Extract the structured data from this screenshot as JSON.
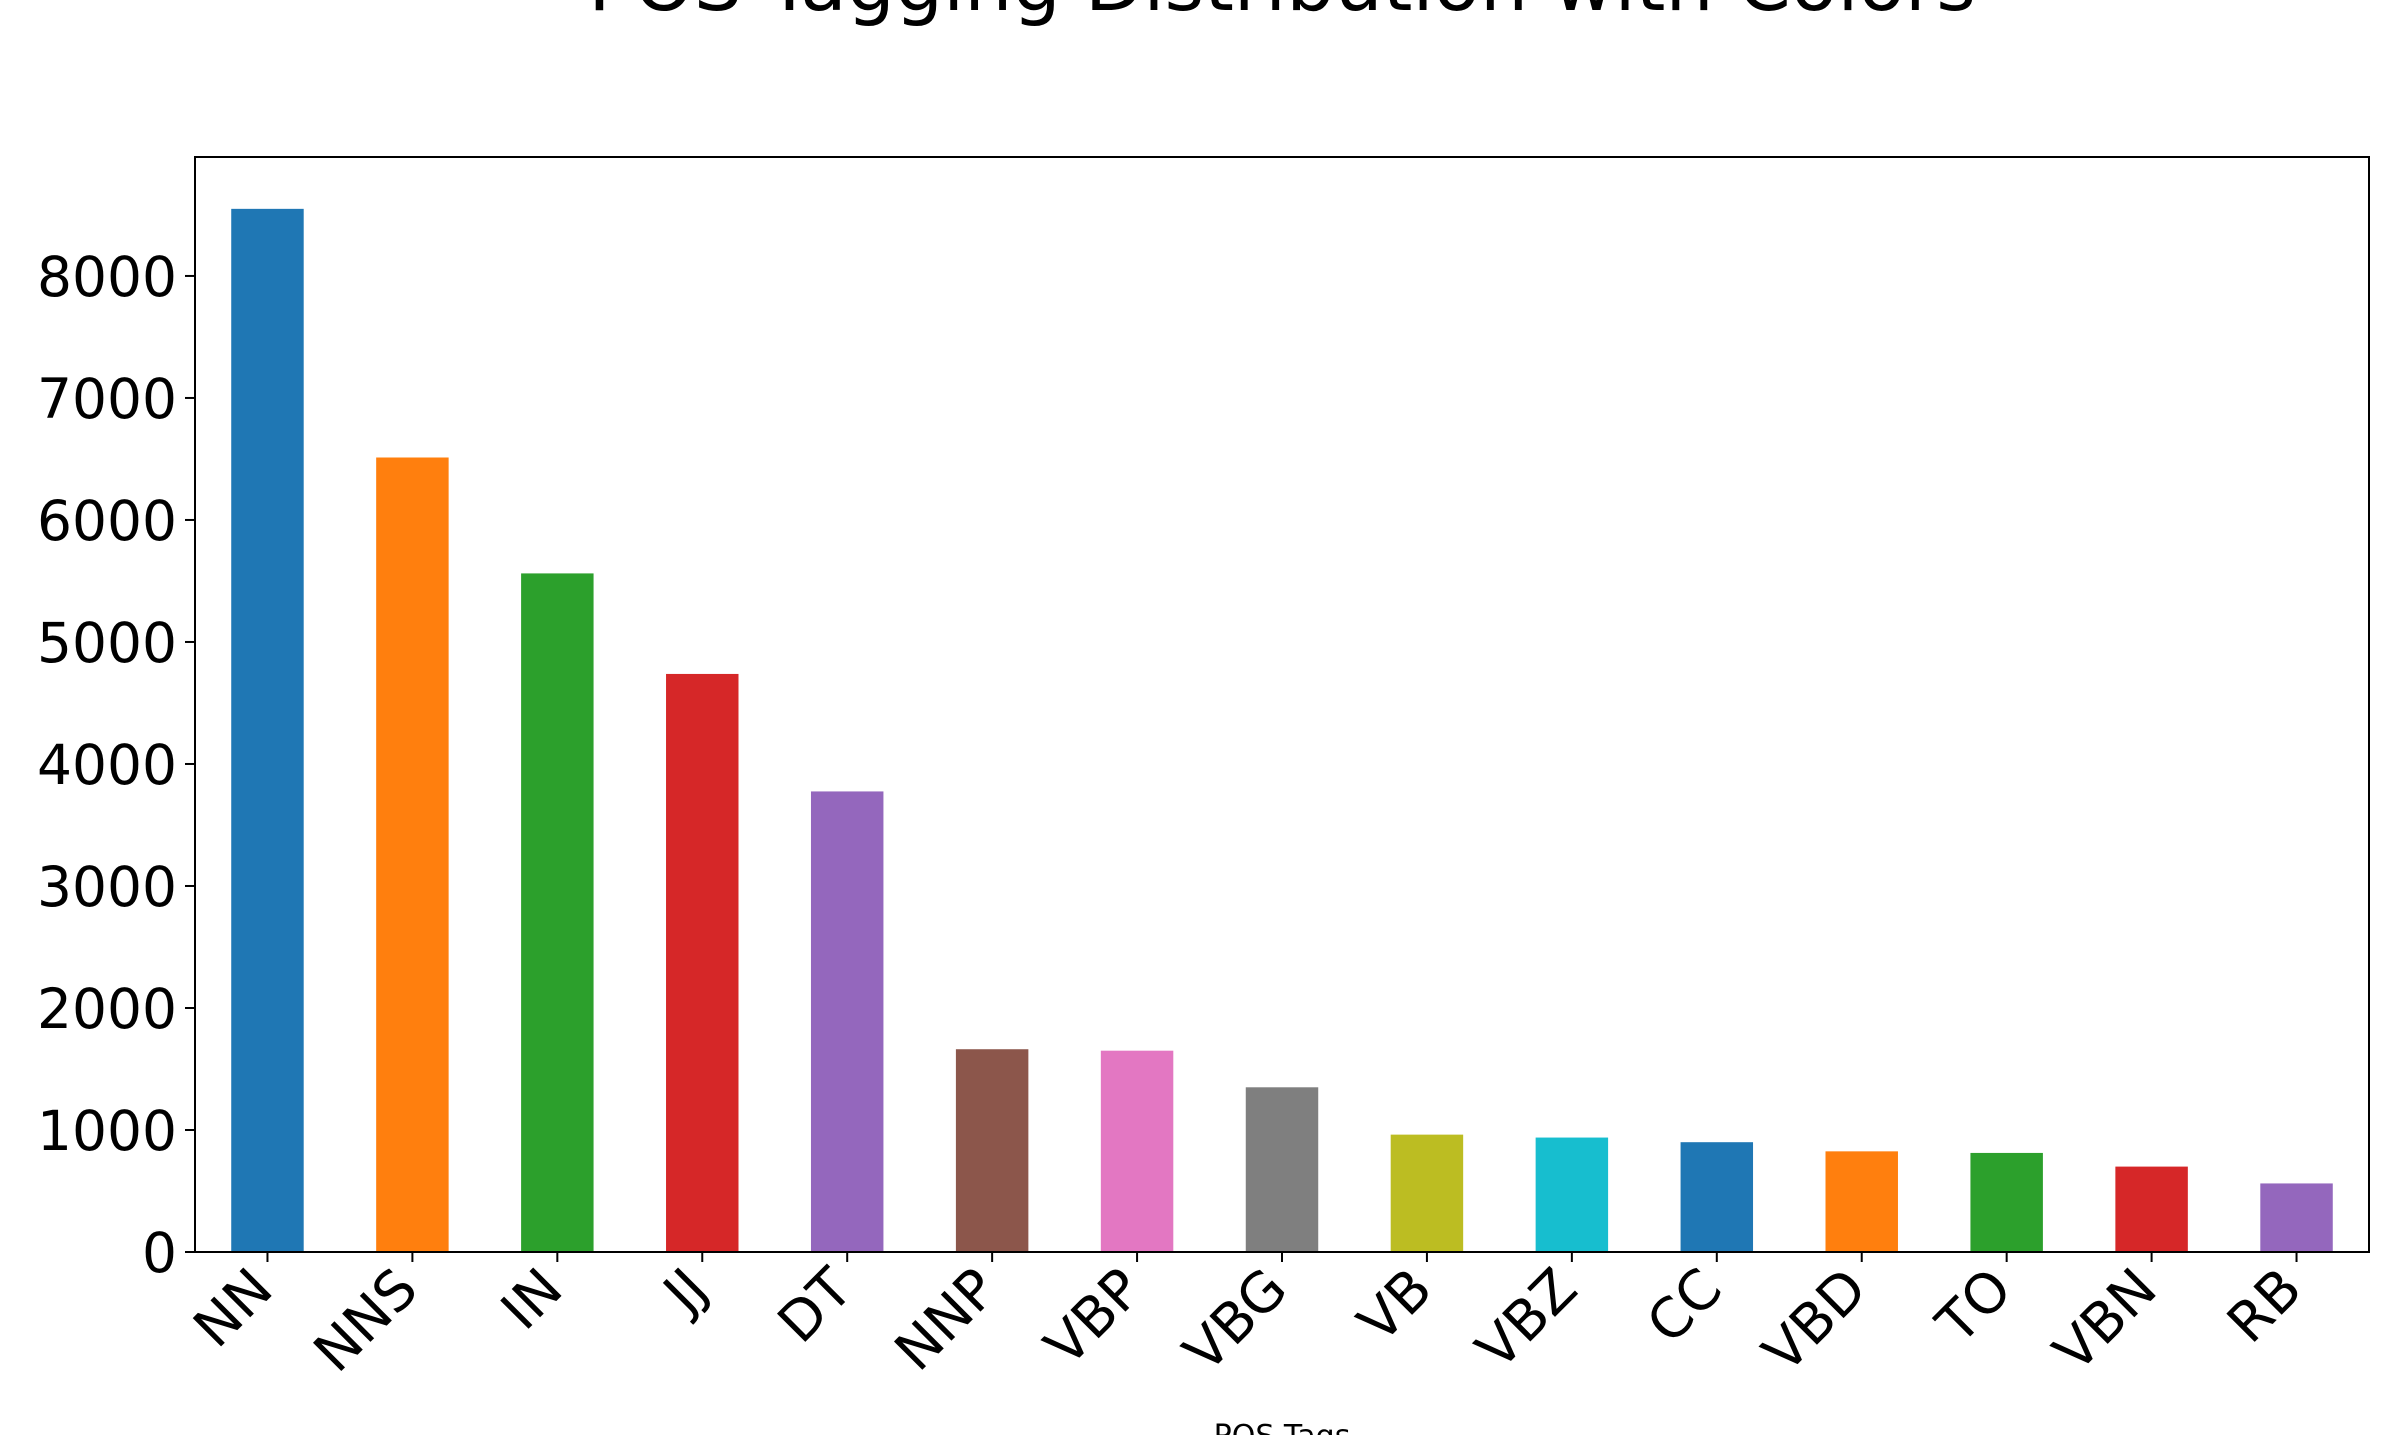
{
  "chart_data": {
    "type": "bar",
    "title": "POS Tagging Distribution with Colors",
    "x_label": "POS Tags",
    "categories": [
      "NN",
      "NNS",
      "IN",
      "JJ",
      "DT",
      "NNP",
      "VBP",
      "VBG",
      "VB",
      "VBZ",
      "CC",
      "VBD",
      "TO",
      "VBN",
      "RB"
    ],
    "values": [
      8550,
      6512,
      5562,
      4738,
      3775,
      1662,
      1650,
      1350,
      962,
      938,
      900,
      825,
      812,
      700,
      562
    ],
    "colors": [
      "#1f77b4",
      "#ff7f0e",
      "#2ca02c",
      "#d62728",
      "#9467bd",
      "#8c564b",
      "#e377c2",
      "#7f7f7f",
      "#bcbd22",
      "#17becf",
      "#1f77b4",
      "#ff7f0e",
      "#2ca02c",
      "#d62728",
      "#9467bd"
    ],
    "ylim": [
      0,
      8975
    ],
    "yticks": [
      0,
      1000,
      2000,
      3000,
      4000,
      5000,
      6000,
      7000,
      8000
    ],
    "grid": false
  }
}
